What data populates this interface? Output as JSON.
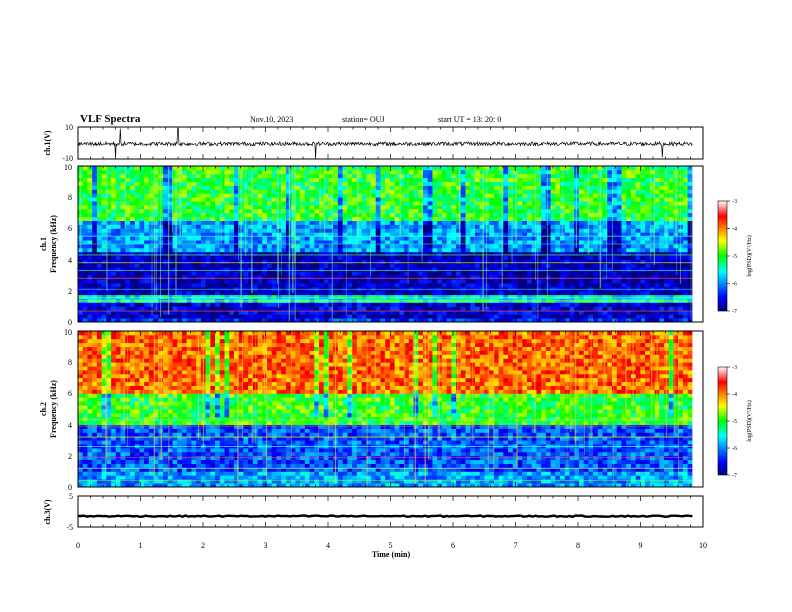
{
  "header": {
    "title": "VLF Spectra",
    "date": "Nov.10, 2023",
    "station": "station= OUJ",
    "start": "start  UT =   13: 20: 0"
  },
  "chart_data": [
    {
      "type": "line",
      "panel": "ch1-waveform",
      "ylabel": "ch.1(V)",
      "ylim": [
        -10,
        10
      ],
      "yticks": [
        "10",
        "-10"
      ],
      "x_range_min": [
        0,
        9.83
      ],
      "description_series": "noisy waveform centred near -0.5 V with occasional spikes",
      "series": [
        {
          "values_approx": {
            "baseline": -0.5,
            "noise_amp": 1.2,
            "spike_times_min": [
              0.6,
              0.68,
              1.6,
              3.8,
              9.35
            ]
          }
        }
      ]
    },
    {
      "type": "heatmap",
      "panel": "ch1-spectrogram",
      "ylabel": "Frequency (kHz)",
      "panel_label": "ch.1",
      "xlim": [
        0,
        10
      ],
      "ylim": [
        0,
        10
      ],
      "yticks": [
        "0",
        "2",
        "4",
        "6",
        "8",
        "10"
      ],
      "data_extent_min": [
        0,
        9.83
      ],
      "colorbar": {
        "label": "log(PSD)(V²/Hz)",
        "range": [
          -7,
          -3
        ],
        "ticks": [
          "-3",
          "-4",
          "-5",
          "-6",
          "-7"
        ]
      },
      "bands_log_psd": [
        {
          "f_khz": [
            0,
            0.3
          ],
          "level": -6.4
        },
        {
          "f_khz": [
            0.3,
            1.2
          ],
          "level": -6.7
        },
        {
          "f_khz": [
            1.2,
            1.7
          ],
          "level": -5.6
        },
        {
          "f_khz": [
            1.7,
            4.5
          ],
          "level": -6.8
        },
        {
          "f_khz": [
            4.5,
            6.5
          ],
          "level": -5.9
        },
        {
          "f_khz": [
            6.5,
            10
          ],
          "level": -5.0
        }
      ]
    },
    {
      "type": "heatmap",
      "panel": "ch2-spectrogram",
      "ylabel": "Frequency (kHz)",
      "panel_label": "ch.2",
      "xlim": [
        0,
        10
      ],
      "ylim": [
        0,
        10
      ],
      "yticks": [
        "0",
        "2",
        "4",
        "6",
        "8",
        "10"
      ],
      "data_extent_min": [
        0,
        9.83
      ],
      "colorbar": {
        "label": "log(PSD)(V²/Hz)",
        "range": [
          -7,
          -3
        ],
        "ticks": [
          "-3",
          "-4",
          "-5",
          "-6",
          "-7"
        ]
      },
      "bands_log_psd": [
        {
          "f_khz": [
            0,
            1.0
          ],
          "level": -5.9
        },
        {
          "f_khz": [
            1.0,
            4.0
          ],
          "level": -6.2
        },
        {
          "f_khz": [
            4.0,
            6.0
          ],
          "level": -5.0
        },
        {
          "f_khz": [
            6.0,
            10
          ],
          "level": -3.9
        }
      ]
    },
    {
      "type": "line",
      "panel": "ch3-waveform",
      "ylabel": "ch.3(V)",
      "ylim": [
        -5,
        5
      ],
      "yticks": [
        "5",
        "-5"
      ],
      "x_range_min": [
        0,
        9.83
      ],
      "series": [
        {
          "values_approx": {
            "baseline": -1.5,
            "noise_amp": 0.2
          }
        }
      ]
    }
  ],
  "xaxis": {
    "label": "Time (min)",
    "range": [
      0,
      10
    ],
    "ticks": [
      "0",
      "1",
      "2",
      "3",
      "4",
      "5",
      "6",
      "7",
      "8",
      "9",
      "10"
    ]
  },
  "colors": {
    "cmap": [
      "#00007f",
      "#0000ff",
      "#00ffff",
      "#00ff00",
      "#ffff00",
      "#ff0000",
      "#7f0000"
    ]
  }
}
